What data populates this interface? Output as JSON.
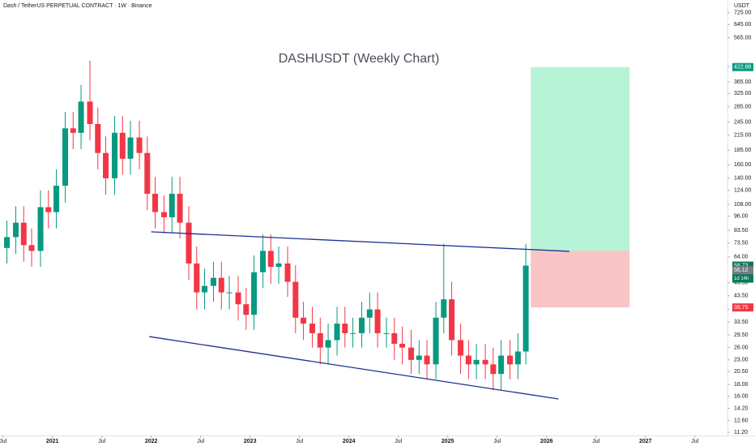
{
  "chart_data": {
    "type": "candlestick",
    "header": "Dash / TetherUS PERPETUAL CONTRACT · 1W · Binance",
    "title": "DASHUSDT (Weekly Chart)",
    "unit_label": "USDT",
    "log_y": true,
    "up_color": "#089981",
    "down_color": "#f23645",
    "xlim": [
      2020.47,
      2027.83
    ],
    "ylim": [
      10.85,
      824
    ],
    "xticks": [
      {
        "value": 2020.5,
        "label": "Jul"
      },
      2021,
      {
        "value": 2021.5,
        "label": "Jul"
      },
      2022,
      {
        "value": 2022.5,
        "label": "Jul"
      },
      2023,
      {
        "value": 2023.5,
        "label": "Jul"
      },
      2024,
      {
        "value": 2024.5,
        "label": "Jul"
      },
      2025,
      {
        "value": 2025.5,
        "label": "Jul"
      },
      2026,
      {
        "value": 2026.5,
        "label": "Jul"
      },
      2027,
      {
        "value": 2027.5,
        "label": "Jul"
      }
    ],
    "yticks": [
      {
        "value": 11.2,
        "label": "11.20"
      },
      {
        "value": 12.6,
        "label": "12.60"
      },
      {
        "value": 14.2,
        "label": "14.20"
      },
      {
        "value": 16,
        "label": "16.00"
      },
      {
        "value": 18,
        "label": "18.00"
      },
      {
        "value": 20.5,
        "label": "20.50"
      },
      {
        "value": 23,
        "label": "23.00"
      },
      {
        "value": 26,
        "label": "26.00"
      },
      {
        "value": 29.5,
        "label": "29.50"
      },
      {
        "value": 33.5,
        "label": "33.50"
      },
      {
        "value": 38,
        "label": "38.00"
      },
      {
        "value": 43.5,
        "label": "43.50"
      },
      {
        "value": 49.5,
        "label": "49.50"
      },
      {
        "value": 64,
        "label": "64.00"
      },
      {
        "value": 73.5,
        "label": "73.50"
      },
      {
        "value": 83.5,
        "label": "83.50"
      },
      {
        "value": 96,
        "label": "96.00"
      },
      {
        "value": 108,
        "label": "108.00"
      },
      {
        "value": 124,
        "label": "124.00"
      },
      {
        "value": 140,
        "label": "140.00"
      },
      {
        "value": 160,
        "label": "160.00"
      },
      {
        "value": 185,
        "label": "185.00"
      },
      {
        "value": 215,
        "label": "215.00"
      },
      {
        "value": 245,
        "label": "245.00"
      },
      {
        "value": 285,
        "label": "285.00"
      },
      {
        "value": 325,
        "label": "325.00"
      },
      {
        "value": 365,
        "label": "365.00"
      },
      {
        "value": 425,
        "label": "425.00"
      },
      {
        "value": 565,
        "label": "565.00"
      },
      {
        "value": 645,
        "label": "645.00"
      },
      {
        "value": 725,
        "label": "725.00"
      }
    ],
    "x": [
      2020.54,
      2020.63,
      2020.71,
      2020.79,
      2020.88,
      2020.96,
      2021.04,
      2021.13,
      2021.21,
      2021.29,
      2021.38,
      2021.46,
      2021.54,
      2021.63,
      2021.71,
      2021.79,
      2021.88,
      2021.96,
      2022.04,
      2022.13,
      2022.21,
      2022.29,
      2022.38,
      2022.46,
      2022.54,
      2022.63,
      2022.71,
      2022.79,
      2022.88,
      2022.96,
      2023.04,
      2023.13,
      2023.21,
      2023.29,
      2023.38,
      2023.46,
      2023.54,
      2023.63,
      2023.71,
      2023.79,
      2023.88,
      2023.96,
      2024.04,
      2024.13,
      2024.21,
      2024.29,
      2024.38,
      2024.46,
      2024.54,
      2024.63,
      2024.71,
      2024.79,
      2024.88,
      2024.96,
      2025.04,
      2025.13,
      2025.21,
      2025.29,
      2025.38,
      2025.46,
      2025.54,
      2025.63,
      2025.71,
      2025.79
    ],
    "open": [
      70,
      78,
      90,
      72,
      68,
      105,
      100,
      130,
      230,
      220,
      300,
      240,
      180,
      140,
      220,
      170,
      210,
      180,
      120,
      100,
      95,
      120,
      90,
      60,
      45,
      48,
      52,
      45,
      45,
      40,
      36,
      55,
      68,
      58,
      60,
      50,
      35,
      33,
      30,
      26,
      28,
      33,
      30,
      30,
      35,
      38,
      30,
      30,
      27,
      26,
      23,
      24,
      22,
      35,
      42,
      28,
      24,
      22,
      23,
      22,
      20,
      24,
      22,
      25
    ],
    "high": [
      92,
      106,
      106,
      85,
      124,
      124,
      153,
      271,
      271,
      354,
      450,
      283,
      212,
      260,
      260,
      248,
      248,
      212,
      142,
      118,
      142,
      142,
      106,
      71,
      57,
      61,
      61,
      53,
      53,
      47,
      65,
      80,
      80,
      71,
      71,
      59,
      41,
      39,
      35,
      33,
      39,
      39,
      35,
      41,
      45,
      45,
      35,
      35,
      32,
      31,
      28,
      28,
      41,
      73,
      50,
      33,
      28,
      27,
      27,
      26,
      28,
      28,
      30,
      73
    ],
    "low": [
      60,
      66,
      61,
      58,
      58,
      85,
      85,
      110,
      187,
      187,
      204,
      153,
      119,
      119,
      145,
      145,
      153,
      102,
      85,
      81,
      81,
      77,
      51,
      38,
      38,
      41,
      38,
      38,
      34,
      31,
      31,
      47,
      49,
      49,
      43,
      30,
      28,
      26,
      22,
      22,
      24,
      26,
      26,
      26,
      30,
      26,
      26,
      23,
      22,
      20,
      20,
      19,
      19,
      30,
      24,
      20,
      19,
      19,
      19,
      17,
      17,
      19,
      19,
      22
    ],
    "close": [
      78,
      90,
      72,
      68,
      105,
      100,
      130,
      230,
      220,
      300,
      240,
      180,
      140,
      220,
      170,
      210,
      180,
      120,
      100,
      95,
      120,
      90,
      60,
      45,
      48,
      52,
      45,
      45,
      40,
      36,
      55,
      68,
      58,
      60,
      50,
      35,
      33,
      30,
      26,
      28,
      33,
      30,
      30,
      35,
      38,
      30,
      30,
      27,
      26,
      23,
      24,
      22,
      35,
      42,
      28,
      24,
      22,
      23,
      22,
      20,
      24,
      22,
      25,
      58.73
    ],
    "trendlines": [
      {
        "x": [
          2022.0,
          2026.23
        ],
        "y": [
          82.2,
          67.7
        ],
        "color": "#1f2f8f"
      },
      {
        "x": [
          2021.98,
          2026.12
        ],
        "y": [
          29.0,
          15.6
        ],
        "color": "#1f2f8f"
      }
    ],
    "position": {
      "x": [
        2025.84,
        2026.84
      ],
      "entry": 68.2,
      "target": 422.88,
      "stop": 38.75,
      "profit_color": "#b7f3d6",
      "loss_color": "#f9c4c6"
    },
    "price_tags": [
      {
        "value": 422.88,
        "color": "#089981"
      },
      {
        "value": 58.73,
        "color": "#0a7a55",
        "lines": [
          "+1.54%",
          "1d 14h"
        ]
      },
      {
        "value": 56.12,
        "color": "#787b86"
      },
      {
        "value": 38.75,
        "color": "#f23645"
      }
    ]
  }
}
